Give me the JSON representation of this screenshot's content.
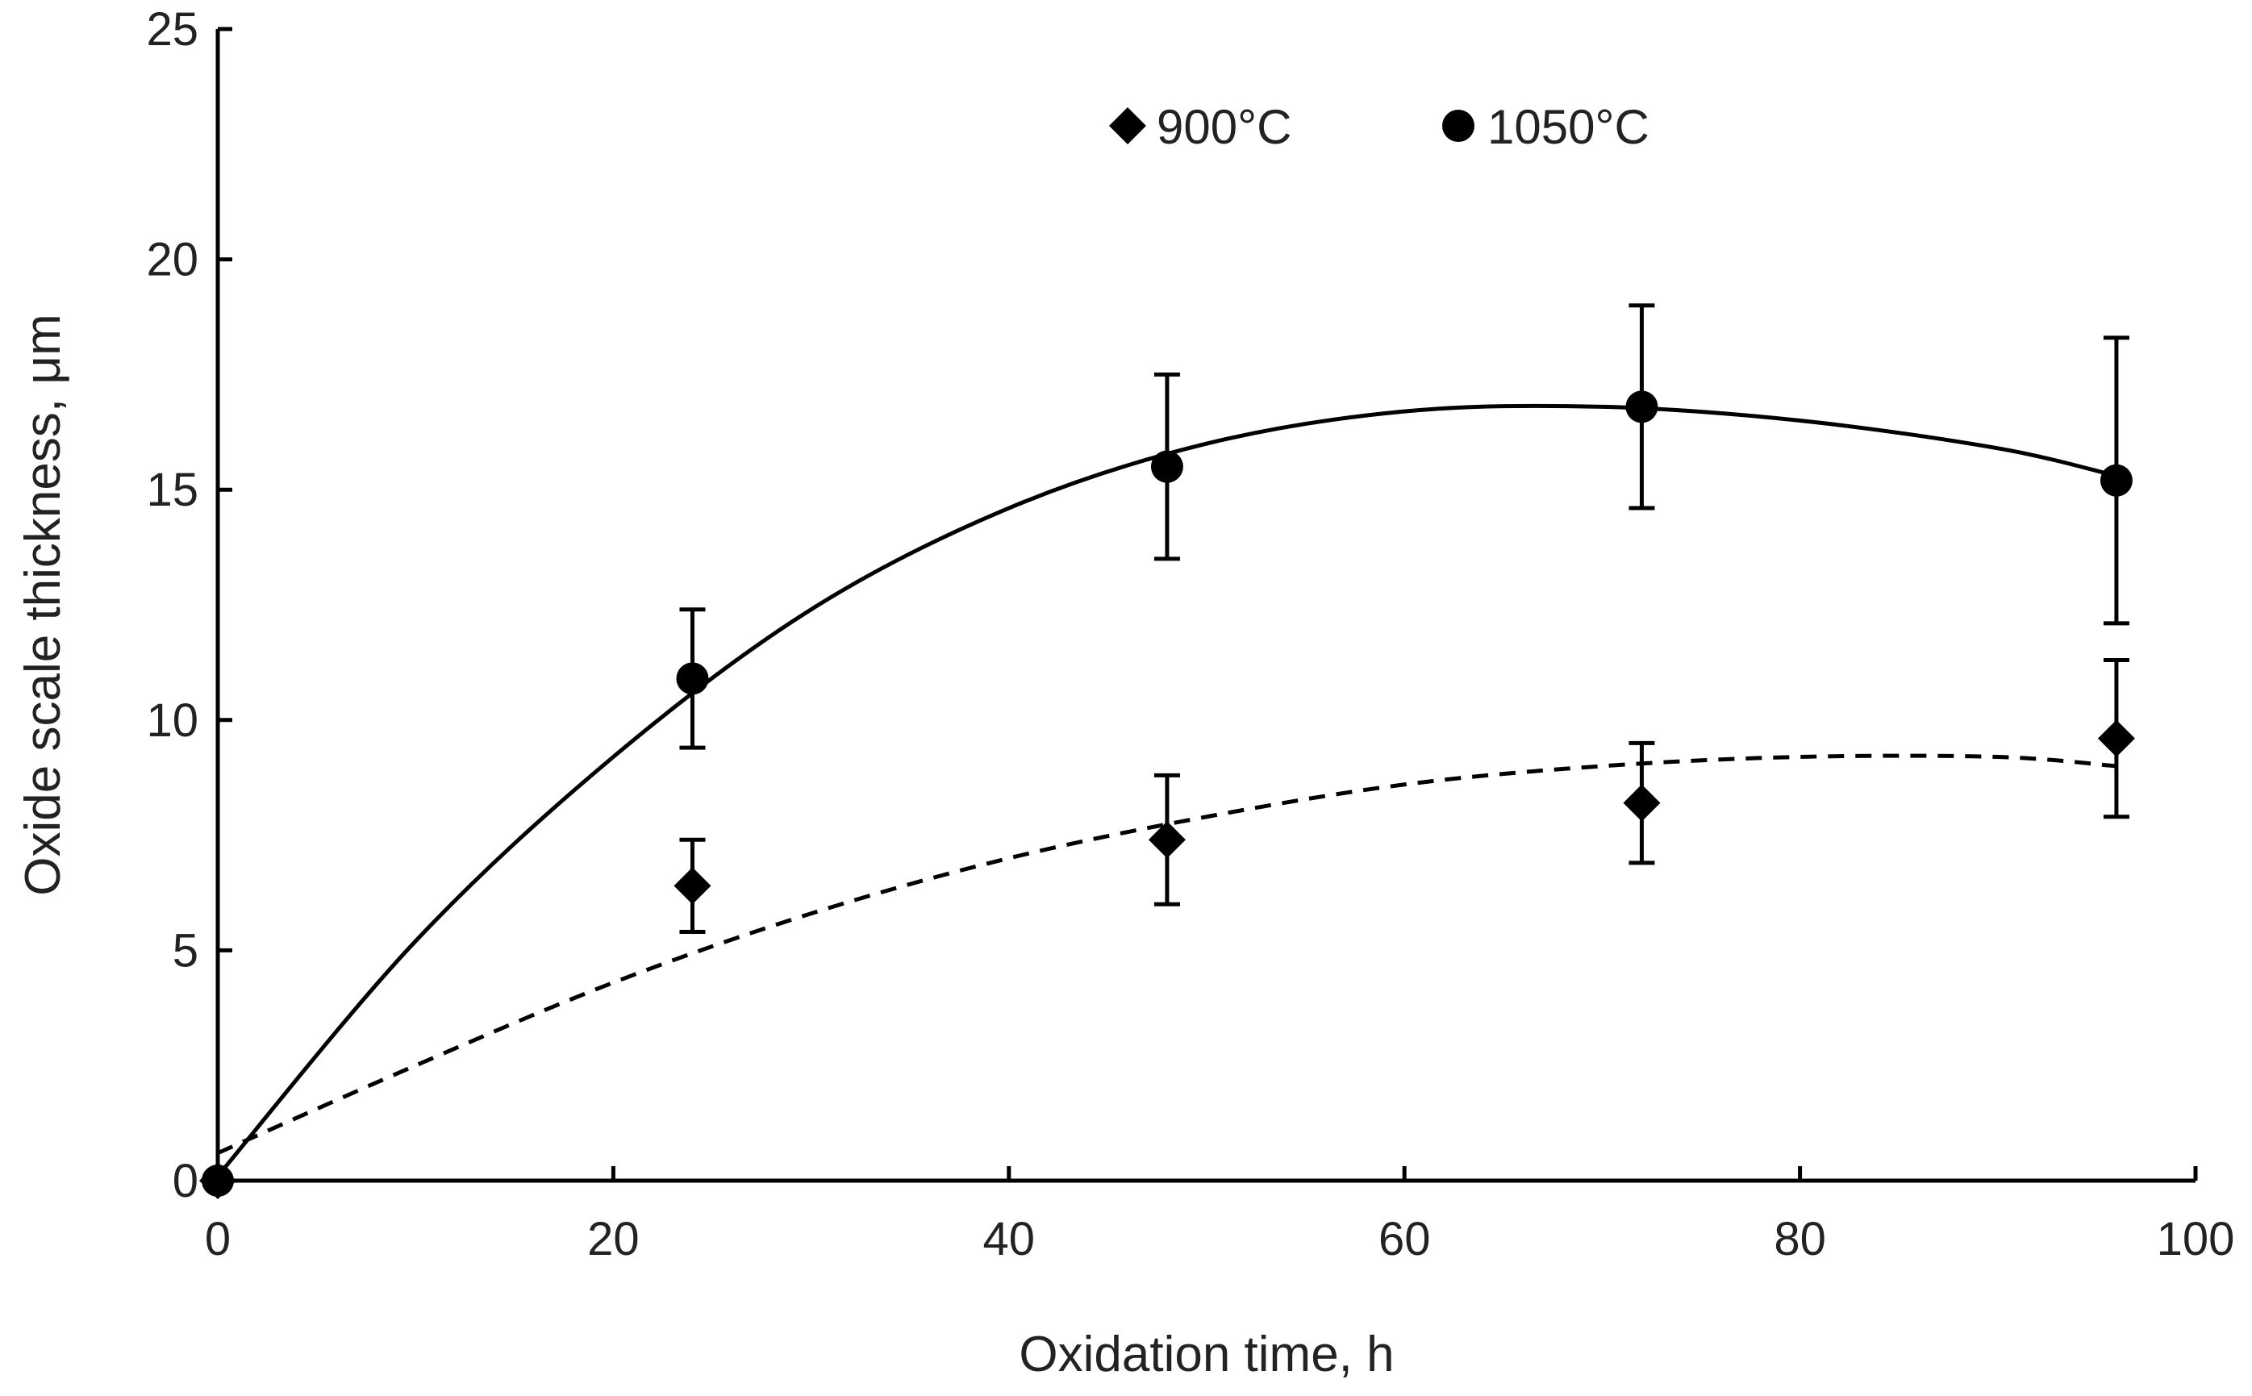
{
  "chart_data": {
    "type": "scatter",
    "title": "",
    "xlabel": "Oxidation time, h",
    "ylabel": "Oxide scale thickness, μm",
    "xlim": [
      0,
      100
    ],
    "ylim": [
      0,
      25
    ],
    "x_ticks": [
      0,
      20,
      40,
      60,
      80,
      100
    ],
    "y_ticks": [
      0,
      5,
      10,
      15,
      20,
      25
    ],
    "grid": false,
    "legend_position": "top-center",
    "series": [
      {
        "name": "900°C",
        "marker": "diamond",
        "color": "#000000",
        "x": [
          0,
          24,
          48,
          72,
          96
        ],
        "y": [
          0,
          6.4,
          7.4,
          8.2,
          9.6
        ],
        "error": [
          0,
          1.0,
          1.4,
          1.3,
          1.7
        ],
        "fit": {
          "style": "dashed",
          "x": [
            0,
            10,
            20,
            30,
            40,
            50,
            60,
            70,
            80,
            90,
            96
          ],
          "y": [
            0.6,
            2.5,
            4.3,
            5.8,
            7.0,
            7.9,
            8.6,
            9.0,
            9.2,
            9.2,
            9.0
          ]
        }
      },
      {
        "name": "1050°C",
        "marker": "circle",
        "color": "#000000",
        "x": [
          0,
          24,
          48,
          72,
          96
        ],
        "y": [
          0,
          10.9,
          15.5,
          16.8,
          15.2
        ],
        "error": [
          0,
          1.5,
          2.0,
          2.2,
          3.1
        ],
        "fit": {
          "style": "solid",
          "x": [
            0,
            10,
            20,
            30,
            40,
            50,
            60,
            70,
            80,
            90,
            96
          ],
          "y": [
            0.1,
            5.2,
            9.2,
            12.4,
            14.6,
            16.0,
            16.7,
            16.8,
            16.5,
            15.9,
            15.3
          ]
        }
      }
    ]
  }
}
